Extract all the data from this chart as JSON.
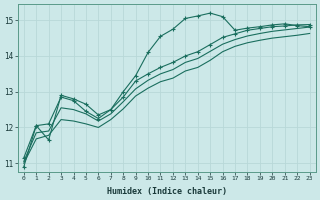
{
  "xlabel": "Humidex (Indice chaleur)",
  "bg_color": "#cce8e8",
  "grid_color": "#b8d8d8",
  "line_color": "#1a6e5e",
  "xlim": [
    -0.5,
    23.5
  ],
  "ylim": [
    10.75,
    15.45
  ],
  "yticks": [
    11,
    12,
    13,
    14,
    15
  ],
  "xticks": [
    0,
    1,
    2,
    3,
    4,
    5,
    6,
    7,
    8,
    9,
    10,
    11,
    12,
    13,
    14,
    15,
    16,
    17,
    18,
    19,
    20,
    21,
    22,
    23
  ],
  "x": [
    0,
    1,
    2,
    3,
    4,
    5,
    6,
    7,
    8,
    9,
    10,
    11,
    12,
    13,
    14,
    15,
    16,
    17,
    18,
    19,
    20,
    21,
    22,
    23
  ],
  "line1": [
    10.9,
    12.05,
    11.65,
    12.9,
    12.8,
    12.65,
    12.35,
    12.5,
    13.0,
    13.45,
    14.1,
    14.55,
    14.75,
    15.05,
    15.12,
    15.2,
    15.1,
    14.72,
    14.78,
    14.82,
    14.87,
    14.9,
    14.85,
    14.82
  ],
  "line2": [
    11.15,
    12.05,
    12.1,
    12.85,
    12.75,
    12.45,
    12.25,
    12.5,
    12.85,
    13.3,
    13.5,
    13.68,
    13.82,
    14.0,
    14.12,
    14.32,
    14.52,
    14.62,
    14.72,
    14.77,
    14.82,
    14.84,
    14.87,
    14.88
  ],
  "line3": [
    11.05,
    11.85,
    11.9,
    12.55,
    12.5,
    12.38,
    12.18,
    12.38,
    12.72,
    13.08,
    13.32,
    13.5,
    13.62,
    13.82,
    13.93,
    14.13,
    14.33,
    14.46,
    14.56,
    14.63,
    14.69,
    14.73,
    14.77,
    14.81
  ],
  "line4": [
    11.0,
    11.68,
    11.78,
    12.22,
    12.18,
    12.1,
    12.0,
    12.22,
    12.52,
    12.88,
    13.1,
    13.28,
    13.38,
    13.58,
    13.68,
    13.88,
    14.12,
    14.27,
    14.37,
    14.44,
    14.5,
    14.54,
    14.58,
    14.63
  ]
}
